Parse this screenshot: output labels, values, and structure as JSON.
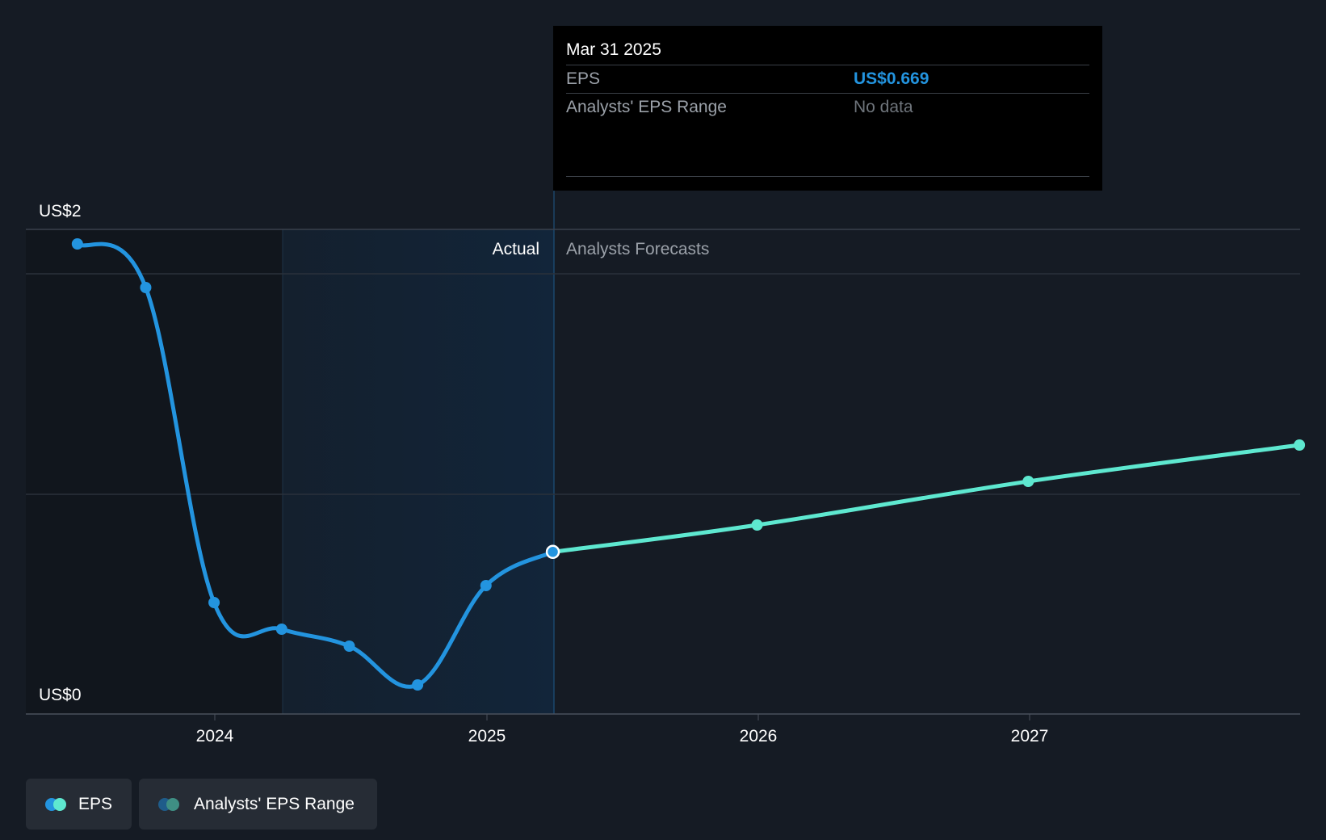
{
  "chart_data": {
    "type": "line",
    "y_axis_labels": [
      "US$2",
      "US$0"
    ],
    "ylim": [
      0,
      2
    ],
    "x_ticks": [
      "2024",
      "2025",
      "2026",
      "2027"
    ],
    "section_labels": {
      "actual": "Actual",
      "forecast": "Analysts Forecasts"
    },
    "series": [
      {
        "name": "EPS",
        "role": "actual",
        "color": "#2394df",
        "points": [
          {
            "x": "2023-06-30",
            "y": 1.94
          },
          {
            "x": "2023-09-30",
            "y": 1.76
          },
          {
            "x": "2023-12-31",
            "y": 0.46
          },
          {
            "x": "2024-03-31",
            "y": 0.35
          },
          {
            "x": "2024-06-30",
            "y": 0.28
          },
          {
            "x": "2024-09-30",
            "y": 0.12
          },
          {
            "x": "2024-12-31",
            "y": 0.53
          },
          {
            "x": "2025-03-31",
            "y": 0.669
          }
        ]
      },
      {
        "name": "EPS",
        "role": "forecast",
        "color": "#5ee8d0",
        "points": [
          {
            "x": "2025-03-31",
            "y": 0.669
          },
          {
            "x": "2025-12-31",
            "y": 0.78
          },
          {
            "x": "2026-12-31",
            "y": 0.96
          },
          {
            "x": "2027-12-31",
            "y": 1.11
          }
        ]
      }
    ],
    "highlight_date": "2025-03-31"
  },
  "tooltip": {
    "date": "Mar 31 2025",
    "rows": [
      {
        "label": "EPS",
        "value": "US$0.669"
      },
      {
        "label": "Analysts' EPS Range",
        "value": "No data"
      }
    ]
  },
  "legend": [
    {
      "label": "EPS",
      "colors": [
        "#2394df",
        "#5ee8d0"
      ]
    },
    {
      "label": "Analysts' EPS Range",
      "colors": [
        "#1f5c8a",
        "#3f8f84"
      ]
    }
  ],
  "colors": {
    "background": "#151b24",
    "actual_highlight": "#12253a",
    "grid": "#2f3540"
  }
}
